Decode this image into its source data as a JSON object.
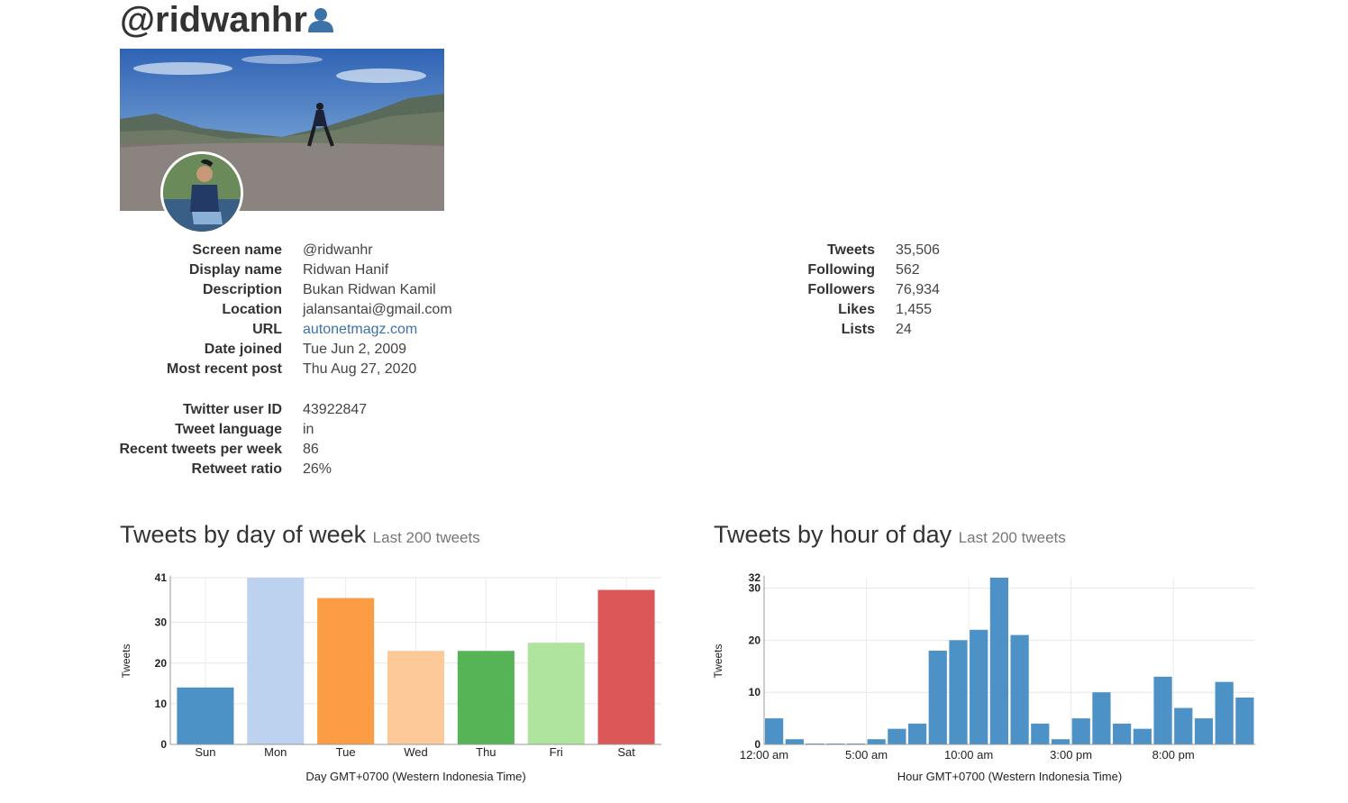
{
  "profile": {
    "handle": "@ridwanhr",
    "info": [
      {
        "label": "Screen name",
        "value": "@ridwanhr"
      },
      {
        "label": "Display name",
        "value": "Ridwan Hanif"
      },
      {
        "label": "Description",
        "value": "Bukan Ridwan Kamil"
      },
      {
        "label": "Location",
        "value": "jalansantai@gmail.com"
      },
      {
        "label": "URL",
        "value": "autonetmagz.com"
      },
      {
        "label": "Date joined",
        "value": "Tue Jun 2, 2009"
      },
      {
        "label": "Most recent post",
        "value": "Thu Aug 27, 2020"
      }
    ],
    "extra": [
      {
        "label": "Twitter user ID",
        "value": "43922847"
      },
      {
        "label": "Tweet language",
        "value": "in"
      },
      {
        "label": "Recent tweets per week",
        "value": "86"
      },
      {
        "label": "Retweet ratio",
        "value": "26%"
      }
    ],
    "stats": [
      {
        "label": "Tweets",
        "value": "35,506"
      },
      {
        "label": "Following",
        "value": "562"
      },
      {
        "label": "Followers",
        "value": "76,934"
      },
      {
        "label": "Likes",
        "value": "1,455"
      },
      {
        "label": "Lists",
        "value": "24"
      }
    ]
  },
  "sections": {
    "day": {
      "title": "Tweets by day of week",
      "subtitle": "Last 200 tweets"
    },
    "hour": {
      "title": "Tweets by hour of day",
      "subtitle": "Last 200 tweets"
    }
  },
  "colors": {
    "link": "#3d72a8",
    "hour_bar": "#4c92c7"
  },
  "icons": {
    "profile": "user-icon"
  },
  "chart_data": [
    {
      "type": "bar",
      "categories": [
        "Sun",
        "Mon",
        "Tue",
        "Wed",
        "Thu",
        "Fri",
        "Sat"
      ],
      "values": [
        14,
        41,
        36,
        23,
        23,
        25,
        38
      ],
      "colors": [
        "#4c92c7",
        "#bcd2ee",
        "#fc9d45",
        "#fdc998",
        "#56b356",
        "#aee49d",
        "#dc5858"
      ],
      "yticks": [
        0,
        10,
        20,
        30,
        41
      ],
      "ylim": [
        0,
        41
      ],
      "ylabel": "Tweets",
      "xlabel": "Day GMT+0700 (Western Indonesia Time)",
      "grid": true
    },
    {
      "type": "bar",
      "x": [
        0,
        1,
        2,
        3,
        4,
        5,
        6,
        7,
        8,
        9,
        10,
        11,
        12,
        13,
        14,
        15,
        16,
        17,
        18,
        19,
        20,
        21,
        22,
        23
      ],
      "values": [
        5,
        1,
        0,
        0,
        0,
        1,
        3,
        4,
        18,
        20,
        22,
        32,
        21,
        4,
        1,
        5,
        10,
        4,
        3,
        13,
        7,
        5,
        12,
        9
      ],
      "xtick_labels": [
        {
          "x": 0,
          "label": "12:00 am"
        },
        {
          "x": 5,
          "label": "5:00 am"
        },
        {
          "x": 10,
          "label": "10:00 am"
        },
        {
          "x": 15,
          "label": "3:00 pm"
        },
        {
          "x": 20,
          "label": "8:00 pm"
        }
      ],
      "yticks": [
        0,
        10,
        20,
        30,
        32
      ],
      "ylim": [
        0,
        32
      ],
      "ylabel": "Tweets",
      "xlabel": "Hour GMT+0700 (Western Indonesia Time)",
      "grid": true
    }
  ]
}
